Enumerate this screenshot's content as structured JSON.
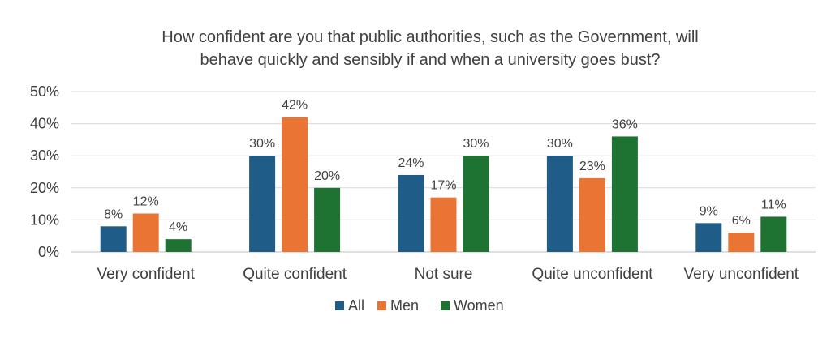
{
  "chart_data": {
    "type": "bar",
    "title_lines": [
      "How confident are you that public authorities, such as the Government, will",
      "behave quickly and sensibly if and when a university goes bust?"
    ],
    "categories": [
      "Very confident",
      "Quite confident",
      "Not sure",
      "Quite unconfident",
      "Very unconfident"
    ],
    "series": [
      {
        "name": "All",
        "color": "#1f5c87",
        "values": [
          8,
          30,
          24,
          30,
          9
        ],
        "labels": [
          "8%",
          "30%",
          "24%",
          "30%",
          "9%"
        ]
      },
      {
        "name": "Men",
        "color": "#ea7434",
        "values": [
          12,
          42,
          17,
          23,
          6
        ],
        "labels": [
          "12%",
          "42%",
          "17%",
          "23%",
          "6%"
        ]
      },
      {
        "name": "Women",
        "color": "#1e7232",
        "values": [
          4,
          20,
          30,
          36,
          11
        ],
        "labels": [
          "4%",
          "20%",
          "30%",
          "36%",
          "11%"
        ]
      }
    ],
    "ylim": [
      0,
      50
    ],
    "yticks": [
      0,
      10,
      20,
      30,
      40,
      50
    ],
    "ytick_labels": [
      "0%",
      "10%",
      "20%",
      "30%",
      "40%",
      "50%"
    ],
    "grid": true,
    "legend_position": "bottom"
  }
}
